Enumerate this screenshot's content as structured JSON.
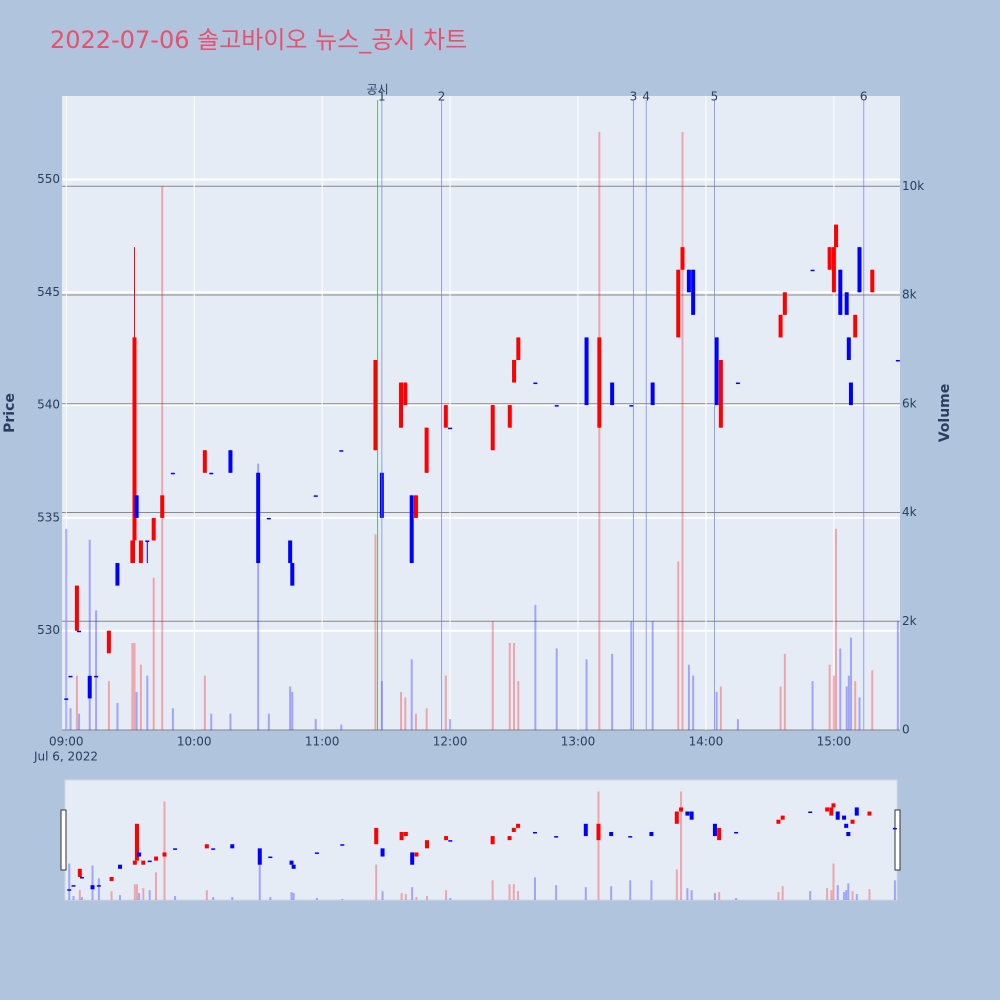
{
  "chart_data": {
    "type": "candlestick",
    "title": "2022-07-06 솔고바이오 뉴스_공시 차트",
    "x_date_label": "Jul 6, 2022",
    "y_title": "Price",
    "y2_title": "Volume",
    "increasing_color": "#ff0000",
    "decreasing_color": "#0000ff",
    "xlim": [
      "08:58",
      "15:31"
    ],
    "xticks": [
      "09:00",
      "10:00",
      "11:00",
      "12:00",
      "13:00",
      "14:00",
      "15:00"
    ],
    "ylim": [
      525.6,
      553.7
    ],
    "yticks": [
      530,
      535,
      540,
      545,
      550
    ],
    "y2lim": [
      0,
      11660
    ],
    "y2ticks": [
      0,
      {
        "value": 2000,
        "label": "2k"
      },
      {
        "value": 4000,
        "label": "4k"
      },
      {
        "value": 6000,
        "label": "6k"
      },
      {
        "value": 8000,
        "label": "8k"
      },
      {
        "value": 10000,
        "label": "10k"
      }
    ],
    "events": [
      {
        "label": "공시",
        "x": "11:26",
        "color": "#3a9a3a"
      },
      {
        "label": "1",
        "x": "11:28",
        "color": "#6f7fe0"
      },
      {
        "label": "2",
        "x": "11:56",
        "color": "#6f7fe0"
      },
      {
        "label": "3",
        "x": "13:26",
        "color": "#6f7fe0"
      },
      {
        "label": "4",
        "x": "13:32",
        "color": "#6f7fe0"
      },
      {
        "label": "5",
        "x": "14:04",
        "color": "#6f7fe0"
      },
      {
        "label": "6",
        "x": "15:14",
        "color": "#6f7fe0"
      }
    ],
    "x": [
      "09:00",
      "09:02",
      "09:05",
      "09:06",
      "09:11",
      "09:14",
      "09:20",
      "09:24",
      "09:31",
      "09:32",
      "09:33",
      "09:35",
      "09:38",
      "09:41",
      "09:45",
      "09:50",
      "10:05",
      "10:08",
      "10:17",
      "10:30",
      "10:35",
      "10:45",
      "10:46",
      "10:57",
      "11:09",
      "11:25",
      "11:28",
      "11:37",
      "11:39",
      "11:42",
      "11:44",
      "11:49",
      "11:58",
      "12:00",
      "12:20",
      "12:28",
      "12:30",
      "12:32",
      "12:40",
      "12:50",
      "13:04",
      "13:10",
      "13:16",
      "13:25",
      "13:35",
      "13:47",
      "13:49",
      "13:52",
      "13:54",
      "14:05",
      "14:07",
      "14:15",
      "14:35",
      "14:37",
      "14:50",
      "14:58",
      "15:00",
      "15:01",
      "15:03",
      "15:06",
      "15:07",
      "15:08",
      "15:10",
      "15:12",
      "15:18",
      "15:30"
    ],
    "open": [
      527,
      528,
      530,
      530,
      528,
      528,
      529,
      533,
      533,
      534,
      536,
      533,
      534,
      534,
      535,
      537,
      537,
      537,
      538,
      537,
      535,
      534,
      533,
      536,
      538,
      538,
      537,
      539,
      540,
      536,
      535,
      537,
      539,
      539,
      538,
      539,
      541,
      542,
      541,
      540,
      543,
      539,
      541,
      540,
      541,
      543,
      546,
      546,
      546,
      543,
      539,
      541,
      543,
      544,
      546,
      546,
      545,
      547,
      546,
      545,
      543,
      541,
      543,
      547,
      545,
      542
    ],
    "high": [
      527,
      528,
      532,
      530,
      528,
      528,
      530,
      533,
      534,
      547,
      536,
      534,
      534,
      535,
      536,
      537,
      538,
      537,
      538,
      537,
      535,
      534,
      533,
      536,
      538,
      542,
      537,
      541,
      541,
      536,
      536,
      539,
      540,
      539,
      540,
      540,
      542,
      543,
      541,
      540,
      543,
      543,
      541,
      540,
      541,
      546,
      547,
      546,
      546,
      543,
      542,
      541,
      544,
      545,
      546,
      547,
      547,
      548,
      546,
      545,
      543,
      541,
      544,
      547,
      546,
      542
    ],
    "low": [
      527,
      528,
      530,
      530,
      527,
      528,
      529,
      532,
      533,
      533,
      535,
      533,
      533,
      534,
      535,
      537,
      537,
      537,
      537,
      533,
      535,
      533,
      532,
      536,
      538,
      538,
      535,
      539,
      540,
      533,
      535,
      537,
      539,
      539,
      538,
      539,
      541,
      542,
      541,
      540,
      540,
      539,
      540,
      540,
      540,
      543,
      546,
      545,
      544,
      540,
      539,
      541,
      543,
      544,
      546,
      546,
      545,
      547,
      544,
      544,
      542,
      540,
      543,
      545,
      545,
      542
    ],
    "close": [
      527,
      528,
      532,
      530,
      527,
      528,
      530,
      532,
      534,
      543,
      535,
      534,
      534,
      535,
      536,
      537,
      538,
      537,
      537,
      533,
      535,
      533,
      532,
      536,
      538,
      542,
      535,
      541,
      541,
      533,
      536,
      539,
      540,
      539,
      540,
      540,
      542,
      543,
      541,
      540,
      540,
      543,
      540,
      540,
      540,
      546,
      547,
      545,
      544,
      540,
      542,
      541,
      544,
      545,
      546,
      547,
      547,
      548,
      544,
      544,
      542,
      540,
      544,
      545,
      546,
      542
    ],
    "volume": [
      3700,
      400,
      1000,
      300,
      3500,
      2200,
      900,
      500,
      1600,
      1600,
      700,
      1200,
      1000,
      2800,
      10000,
      400,
      1000,
      300,
      300,
      4900,
      300,
      800,
      700,
      200,
      100,
      3600,
      900,
      700,
      600,
      1300,
      300,
      400,
      1000,
      200,
      2000,
      1600,
      1600,
      900,
      2300,
      1500,
      1300,
      11000,
      1400,
      2000,
      2000,
      3100,
      11000,
      1200,
      1000,
      700,
      800,
      200,
      800,
      1400,
      900,
      1200,
      1000,
      3700,
      1500,
      800,
      1000,
      1700,
      900,
      600,
      1100,
      2000
    ]
  }
}
